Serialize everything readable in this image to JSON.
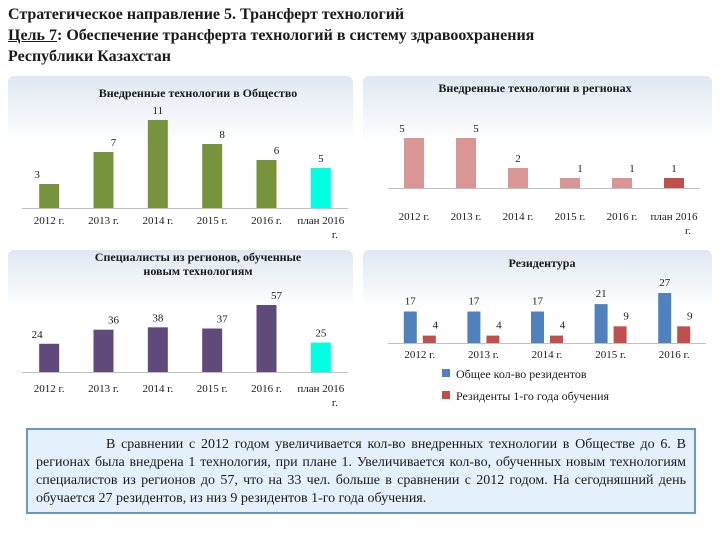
{
  "header": {
    "line1": "Стратегическое направление 5. Трансферт технологий",
    "goal_prefix": "Цель 7",
    "goal_text": ": Обеспечение трансферта технологий в систему здравоохранения",
    "line3": "Республики Казахстан"
  },
  "colors": {
    "green": "#77933c",
    "cyan": "#00ffe0",
    "pink": "#d99694",
    "purple": "#604a7b",
    "blue": "#4f81bd",
    "red": "#c0504d"
  },
  "chart_data": [
    {
      "id": "society",
      "type": "bar",
      "title_lines": [
        "Внедренные технологии в Общество"
      ],
      "categories": [
        "2012 г.",
        "2013 г.",
        "2014 г.",
        "2015 г.",
        "2016 г.",
        "план 2016 г."
      ],
      "values": [
        3,
        7,
        11,
        8,
        6,
        5
      ],
      "bar_colors": [
        "#77933c",
        "#77933c",
        "#77933c",
        "#77933c",
        "#77933c",
        "#00ffe0"
      ],
      "ylim": [
        0,
        11
      ]
    },
    {
      "id": "regions",
      "type": "bar",
      "title_lines": [
        "Внедренные технологии в регионах"
      ],
      "categories": [
        "2012 г.",
        "2013 г.",
        "2014 г.",
        "2015 г.",
        "2016 г.",
        "план 2016 г."
      ],
      "values": [
        5,
        5,
        2,
        1,
        1,
        1
      ],
      "bar_colors": [
        "#d99694",
        "#d99694",
        "#d99694",
        "#d99694",
        "#d99694",
        "#c0504d"
      ],
      "ylim": [
        0,
        5
      ]
    },
    {
      "id": "specialists",
      "type": "bar",
      "title_lines": [
        "Специалисты из регионов, обученные",
        "новым технологиям"
      ],
      "categories": [
        "2012 г.",
        "2013 г.",
        "2014 г.",
        "2015 г.",
        "2016 г.",
        "план 2016 г."
      ],
      "values": [
        24,
        36,
        38,
        37,
        57,
        25
      ],
      "bar_colors": [
        "#604a7b",
        "#604a7b",
        "#604a7b",
        "#604a7b",
        "#604a7b",
        "#00ffe0"
      ],
      "ylim": [
        0,
        57
      ]
    },
    {
      "id": "residency",
      "type": "bar",
      "title_lines": [
        "Резидентура"
      ],
      "categories": [
        "2012 г.",
        "2013 г.",
        "2014 г.",
        "2015 г.",
        "2016 г."
      ],
      "series": [
        {
          "name": "Общее кол-во резидентов",
          "values": [
            17,
            17,
            17,
            21,
            27
          ],
          "color": "#4f81bd"
        },
        {
          "name": "Резиденты 1-го года обучения",
          "values": [
            4,
            4,
            4,
            9,
            9
          ],
          "color": "#c0504d"
        }
      ],
      "legend": "bottom",
      "ylim": [
        0,
        27
      ]
    }
  ],
  "summary": "В сравнении с 2012 годом увеличивается кол-во внедренных технологии в Обществе до 6. В регионах была внедрена 1 технология, при плане 1. Увеличивается кол-во, обученных новым технологиям специалистов из регионов до 57, что на 33 чел. больше в сравнении с 2012 годом. На сегодняшний день обучается 27 резидентов, из низ 9 резидентов 1-го года обучения."
}
